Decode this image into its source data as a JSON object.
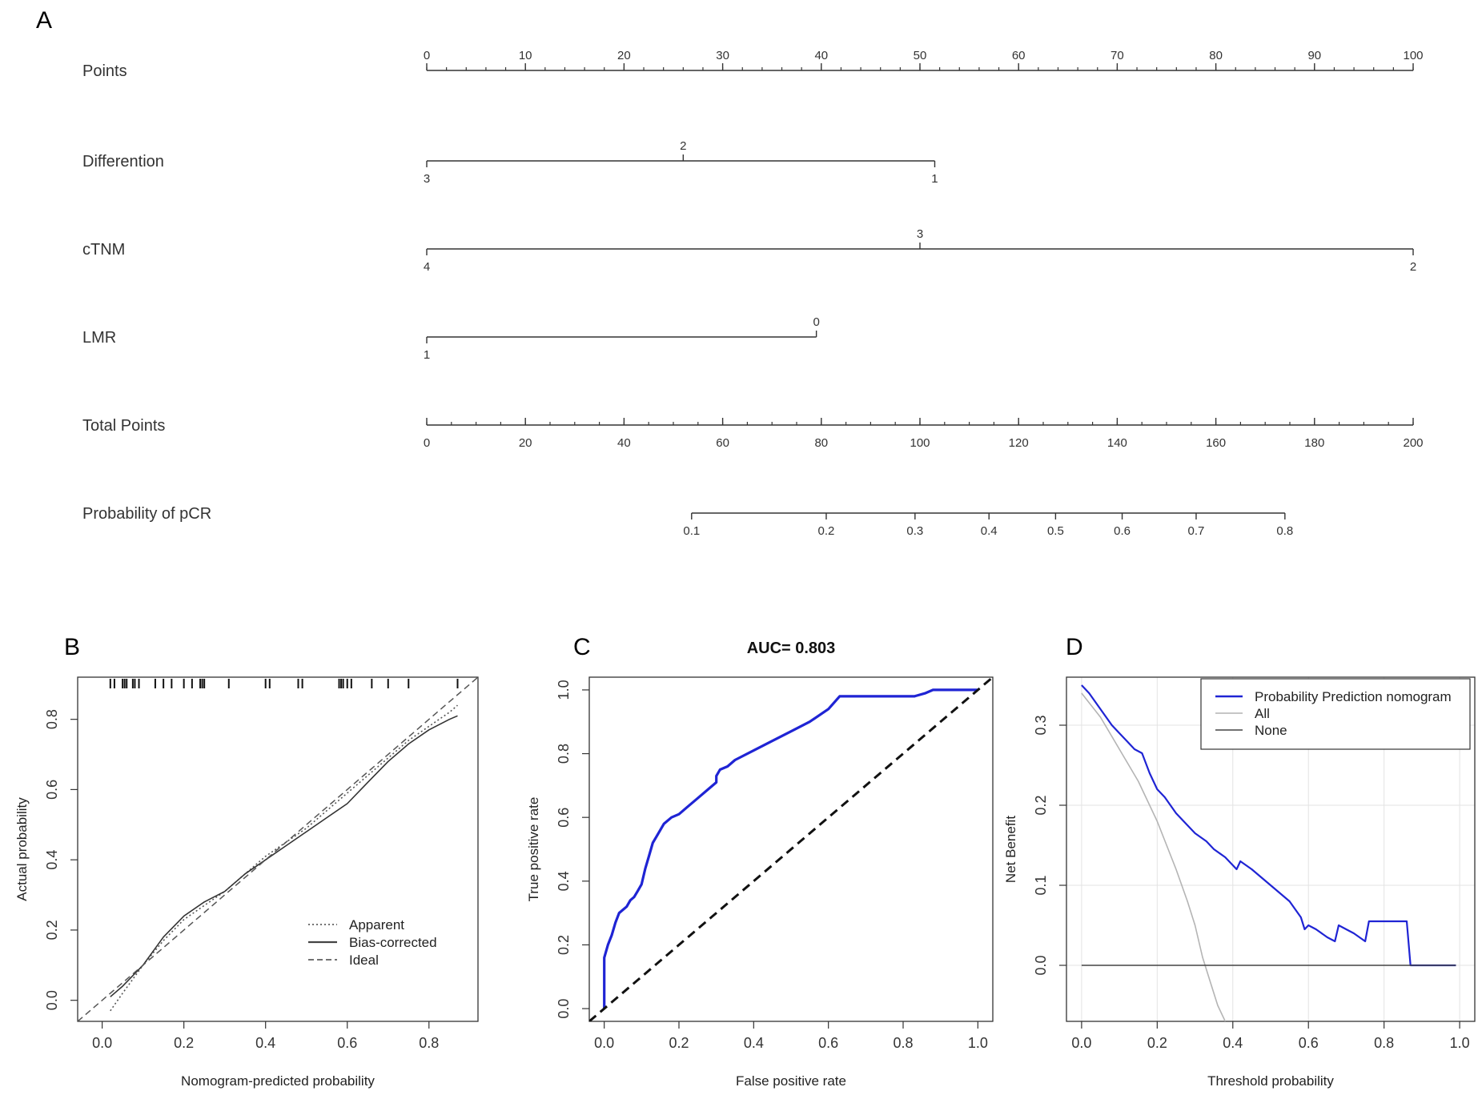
{
  "panel_labels": {
    "a": "A",
    "b": "B",
    "c": "C",
    "d": "D"
  },
  "colors": {
    "axis": "#333333",
    "blue": "#1f24d4",
    "gray": "#b4b4b4",
    "grid": "#e3e3e3",
    "dark": "#444444"
  },
  "chart_data": [
    {
      "panel": "A",
      "type": "nomogram",
      "rows": [
        {
          "label": "Points",
          "kind": "scale",
          "axis_min": 0,
          "axis_max": 100,
          "major_ticks": [
            0,
            10,
            20,
            30,
            40,
            50,
            60,
            70,
            80,
            90,
            100
          ],
          "minor_step": 2
        },
        {
          "label": "Differention",
          "kind": "variable",
          "levels": [
            {
              "value": "3",
              "points": 0,
              "side": "below"
            },
            {
              "value": "2",
              "points": 26,
              "side": "above"
            },
            {
              "value": "1",
              "points": 51.5,
              "side": "below"
            }
          ]
        },
        {
          "label": "cTNM",
          "kind": "variable",
          "levels": [
            {
              "value": "4",
              "points": 0,
              "side": "below"
            },
            {
              "value": "3",
              "points": 50,
              "side": "above"
            },
            {
              "value": "2",
              "points": 100,
              "side": "below"
            }
          ]
        },
        {
          "label": "LMR",
          "kind": "variable",
          "levels": [
            {
              "value": "1",
              "points": 0,
              "side": "below"
            },
            {
              "value": "0",
              "points": 39.5,
              "side": "above"
            }
          ]
        },
        {
          "label": "Total Points",
          "kind": "scale",
          "axis_min": 0,
          "axis_max": 200,
          "major_ticks": [
            0,
            20,
            40,
            60,
            80,
            100,
            120,
            140,
            160,
            180,
            200
          ],
          "minor_step": 5
        },
        {
          "label": "Probability of pCR",
          "kind": "probability",
          "ticks": [
            {
              "label": "0.1",
              "total_points": 53.7
            },
            {
              "label": "0.2",
              "total_points": 81
            },
            {
              "label": "0.3",
              "total_points": 99
            },
            {
              "label": "0.4",
              "total_points": 114
            },
            {
              "label": "0.5",
              "total_points": 127.5
            },
            {
              "label": "0.6",
              "total_points": 141
            },
            {
              "label": "0.7",
              "total_points": 156
            },
            {
              "label": "0.8",
              "total_points": 174
            }
          ]
        }
      ]
    },
    {
      "panel": "B",
      "type": "line",
      "xlabel": "Nomogram-predicted probability",
      "ylabel": "Actual probability",
      "xlim": [
        -0.06,
        0.92
      ],
      "ylim": [
        -0.06,
        0.92
      ],
      "xticks": [
        0.0,
        0.2,
        0.4,
        0.6,
        0.8
      ],
      "xtick_labels": [
        "0.0",
        "0.2",
        "0.4",
        "0.6",
        "0.8"
      ],
      "yticks": [
        0.0,
        0.2,
        0.4,
        0.6,
        0.8
      ],
      "ytick_labels": [
        "0.0",
        "0.2",
        "0.4",
        "0.6",
        "0.8"
      ],
      "legend": {
        "position": "bottom-right",
        "entries": [
          "Apparent",
          "Bias-corrected",
          "Ideal"
        ]
      },
      "rug": [
        0.02,
        0.03,
        0.05,
        0.055,
        0.06,
        0.075,
        0.08,
        0.09,
        0.13,
        0.15,
        0.17,
        0.2,
        0.22,
        0.24,
        0.245,
        0.25,
        0.31,
        0.4,
        0.41,
        0.48,
        0.49,
        0.58,
        0.585,
        0.59,
        0.6,
        0.61,
        0.66,
        0.7,
        0.75,
        0.87
      ],
      "series": [
        {
          "name": "Apparent",
          "style": "dotted",
          "x": [
            0.02,
            0.05,
            0.1,
            0.15,
            0.2,
            0.25,
            0.3,
            0.35,
            0.4,
            0.45,
            0.5,
            0.55,
            0.6,
            0.65,
            0.7,
            0.75,
            0.8,
            0.85,
            0.87
          ],
          "y": [
            -0.03,
            0.02,
            0.1,
            0.17,
            0.23,
            0.27,
            0.31,
            0.36,
            0.41,
            0.45,
            0.49,
            0.54,
            0.59,
            0.64,
            0.69,
            0.74,
            0.78,
            0.82,
            0.84
          ]
        },
        {
          "name": "Bias-corrected",
          "style": "solid",
          "x": [
            0.02,
            0.05,
            0.1,
            0.15,
            0.2,
            0.25,
            0.3,
            0.35,
            0.4,
            0.45,
            0.5,
            0.55,
            0.6,
            0.65,
            0.7,
            0.75,
            0.8,
            0.85,
            0.87
          ],
          "y": [
            0.01,
            0.04,
            0.1,
            0.18,
            0.24,
            0.28,
            0.31,
            0.36,
            0.4,
            0.44,
            0.48,
            0.52,
            0.56,
            0.62,
            0.68,
            0.73,
            0.77,
            0.8,
            0.81
          ]
        },
        {
          "name": "Ideal",
          "style": "dashed",
          "x": [
            -0.06,
            0.92
          ],
          "y": [
            -0.06,
            0.92
          ]
        }
      ]
    },
    {
      "panel": "C",
      "type": "line",
      "title": "AUC= 0.803",
      "xlabel": "False positive rate",
      "ylabel": "True positive rate",
      "xlim": [
        -0.04,
        1.04
      ],
      "ylim": [
        -0.04,
        1.04
      ],
      "xticks": [
        0.0,
        0.2,
        0.4,
        0.6,
        0.8,
        1.0
      ],
      "xtick_labels": [
        "0.0",
        "0.2",
        "0.4",
        "0.6",
        "0.8",
        "1.0"
      ],
      "yticks": [
        0.0,
        0.2,
        0.4,
        0.6,
        0.8,
        1.0
      ],
      "ytick_labels": [
        "0.0",
        "0.2",
        "0.4",
        "0.6",
        "0.8",
        "1.0"
      ],
      "series": [
        {
          "x": [
            0,
            0,
            0.01,
            0.02,
            0.03,
            0.04,
            0.05,
            0.06,
            0.07,
            0.08,
            0.09,
            0.1,
            0.11,
            0.12,
            0.13,
            0.14,
            0.16,
            0.18,
            0.2,
            0.22,
            0.25,
            0.28,
            0.3,
            0.3,
            0.31,
            0.33,
            0.35,
            0.4,
            0.45,
            0.5,
            0.55,
            0.6,
            0.63,
            0.7,
            0.75,
            0.8,
            0.83,
            0.86,
            0.88,
            0.9,
            1.0
          ],
          "y": [
            0,
            0.16,
            0.2,
            0.23,
            0.27,
            0.3,
            0.31,
            0.32,
            0.34,
            0.35,
            0.37,
            0.39,
            0.44,
            0.48,
            0.52,
            0.54,
            0.58,
            0.6,
            0.61,
            0.63,
            0.66,
            0.69,
            0.71,
            0.73,
            0.75,
            0.76,
            0.78,
            0.81,
            0.84,
            0.87,
            0.9,
            0.94,
            0.98,
            0.98,
            0.98,
            0.98,
            0.98,
            0.99,
            1.0,
            1.0,
            1.0
          ]
        },
        {
          "style": "dashed",
          "x": [
            -0.04,
            1.04
          ],
          "y": [
            -0.04,
            1.04
          ]
        }
      ]
    },
    {
      "panel": "D",
      "type": "line",
      "xlabel": "Threshold probability",
      "ylabel": "Net Benefit",
      "xlim": [
        -0.04,
        1.04
      ],
      "ylim": [
        -0.07,
        0.36
      ],
      "xticks": [
        0.0,
        0.2,
        0.4,
        0.6,
        0.8,
        1.0
      ],
      "xtick_labels": [
        "0.0",
        "0.2",
        "0.4",
        "0.6",
        "0.8",
        "1.0"
      ],
      "yticks": [
        0.0,
        0.1,
        0.2,
        0.3
      ],
      "ytick_labels": [
        "0.0",
        "0.1",
        "0.2",
        "0.3"
      ],
      "grid": true,
      "legend": {
        "position": "top-right",
        "entries": [
          "Probability Prediction nomogram",
          "All",
          "None"
        ]
      },
      "series": [
        {
          "name": "Probability Prediction nomogram",
          "x": [
            0,
            0.02,
            0.05,
            0.08,
            0.1,
            0.12,
            0.14,
            0.16,
            0.18,
            0.19,
            0.2,
            0.22,
            0.25,
            0.28,
            0.3,
            0.33,
            0.35,
            0.38,
            0.4,
            0.41,
            0.42,
            0.45,
            0.5,
            0.55,
            0.58,
            0.59,
            0.6,
            0.62,
            0.65,
            0.67,
            0.68,
            0.7,
            0.72,
            0.75,
            0.76,
            0.77,
            0.78,
            0.8,
            0.83,
            0.86,
            0.87,
            0.9,
            0.95,
            0.99
          ],
          "y": [
            0.35,
            0.34,
            0.32,
            0.3,
            0.29,
            0.28,
            0.27,
            0.265,
            0.24,
            0.23,
            0.22,
            0.21,
            0.19,
            0.175,
            0.165,
            0.155,
            0.145,
            0.135,
            0.125,
            0.12,
            0.13,
            0.12,
            0.1,
            0.08,
            0.06,
            0.045,
            0.05,
            0.045,
            0.035,
            0.03,
            0.05,
            0.045,
            0.04,
            0.03,
            0.055,
            0.055,
            0.055,
            0.055,
            0.055,
            0.055,
            0,
            0,
            0,
            0
          ]
        },
        {
          "name": "All",
          "x": [
            0,
            0.05,
            0.1,
            0.15,
            0.2,
            0.25,
            0.28,
            0.3,
            0.32,
            0.34,
            0.36,
            0.38
          ],
          "y": [
            0.34,
            0.31,
            0.27,
            0.23,
            0.18,
            0.12,
            0.08,
            0.05,
            0.01,
            -0.02,
            -0.05,
            -0.07
          ]
        },
        {
          "name": "None",
          "x": [
            0,
            0.99
          ],
          "y": [
            0,
            0
          ]
        }
      ]
    }
  ]
}
